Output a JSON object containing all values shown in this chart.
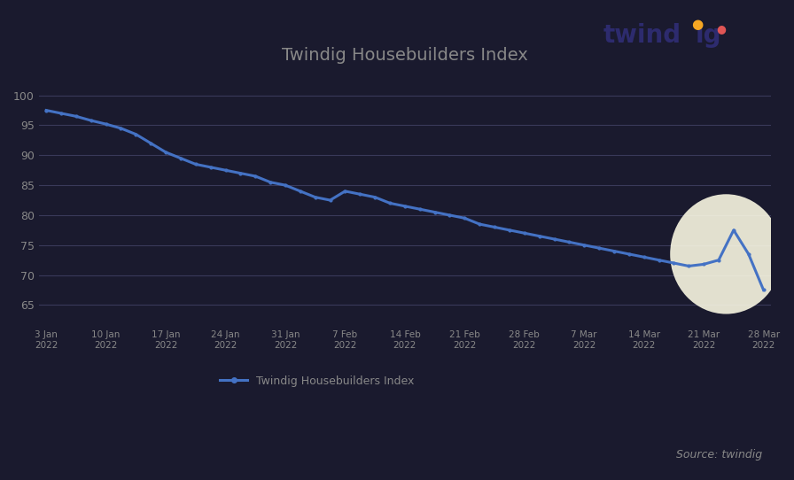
{
  "title": "Twindig Housebuilders Index",
  "legend_label": "Twindig Housebuilders Index",
  "source_text": "Source: twindig",
  "line_color": "#4472c4",
  "line_width": 2.2,
  "marker": "o",
  "marker_size": 3,
  "background_color": "#1a1a2e",
  "plot_bg_color": "#1a1a2e",
  "grid_color": "#3a3a5a",
  "ylim": [
    62,
    103
  ],
  "yticks": [
    65,
    70,
    75,
    80,
    85,
    90,
    95,
    100
  ],
  "x_labels": [
    "3 Jan\n2022",
    "10 Jan\n2022",
    "17 Jan\n2022",
    "24 Jan\n2022",
    "31 Jan\n2022",
    "7 Feb\n2022",
    "14 Feb\n2022",
    "21 Feb\n2022",
    "28 Feb\n2022",
    "7 Mar\n2022",
    "14 Mar\n2022",
    "21 Mar\n2022",
    "28 Mar\n2022"
  ],
  "y_values": [
    97.5,
    97.0,
    96.5,
    95.8,
    95.2,
    94.5,
    93.5,
    92.0,
    90.5,
    89.5,
    88.5,
    88.0,
    87.5,
    87.0,
    86.5,
    85.5,
    85.0,
    84.0,
    83.0,
    82.5,
    84.0,
    83.5,
    83.0,
    82.0,
    81.5,
    81.0,
    80.5,
    80.0,
    79.5,
    78.5,
    78.0,
    77.5,
    77.0,
    76.5,
    76.0,
    75.5,
    75.0,
    74.5,
    74.0,
    73.5,
    73.0,
    72.5,
    72.0,
    71.5,
    71.8,
    72.5,
    77.5,
    73.5,
    67.5
  ],
  "highlight_color": "#fffde7",
  "highlight_alpha": 0.88,
  "twindig_text_color": "#2d2b6e",
  "twindig_ig_color": "#2d2b6e",
  "twindig_dot_orange": "#f5a623",
  "twindig_dot_red": "#e05555",
  "title_color": "#888888",
  "tick_color": "#888888",
  "fig_width": 8.96,
  "fig_height": 5.42
}
